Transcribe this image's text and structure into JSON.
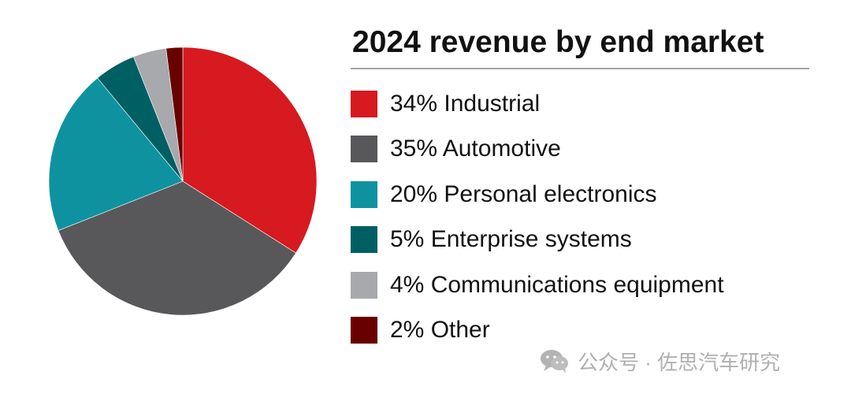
{
  "chart_data": {
    "type": "pie",
    "title": "2024 revenue by end market",
    "legend_placement": "right",
    "slices": [
      {
        "label": "34% Industrial",
        "value": 34,
        "color": "#d71920"
      },
      {
        "label": "35% Automotive",
        "value": 35,
        "color": "#58585a"
      },
      {
        "label": "20% Personal electronics",
        "value": 20,
        "color": "#0f929f"
      },
      {
        "label": "5% Enterprise systems",
        "value": 5,
        "color": "#005f63"
      },
      {
        "label": "4% Communications equipment",
        "value": 4,
        "color": "#a7a9ac"
      },
      {
        "label": "2% Other",
        "value": 2,
        "color": "#690000"
      }
    ]
  },
  "watermark": {
    "icon": "wechat-icon",
    "text": "公众号 · 佐思汽车研究"
  }
}
